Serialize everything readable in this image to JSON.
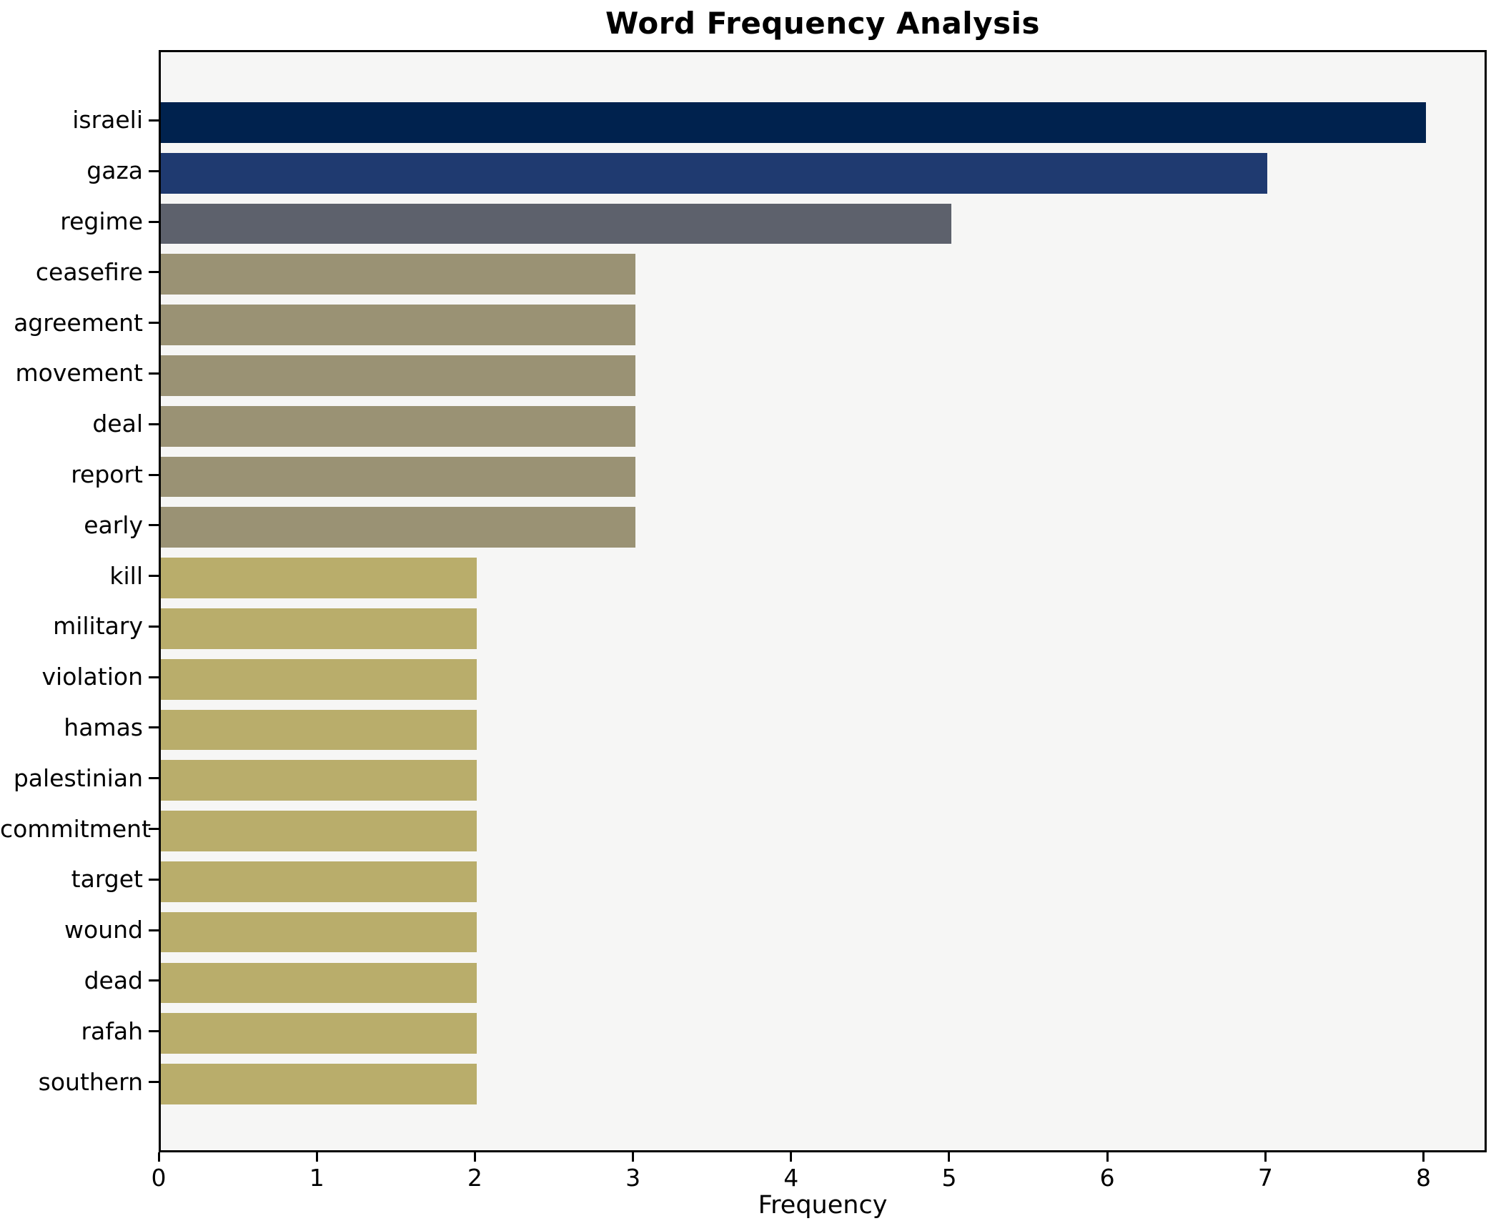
{
  "chart_data": {
    "type": "bar",
    "orientation": "horizontal",
    "title": "Word Frequency Analysis",
    "xlabel": "Frequency",
    "ylabel": "",
    "categories": [
      "israeli",
      "gaza",
      "regime",
      "ceasefire",
      "agreement",
      "movement",
      "deal",
      "report",
      "early",
      "kill",
      "military",
      "violation",
      "hamas",
      "palestinian",
      "commitment",
      "target",
      "wound",
      "dead",
      "rafah",
      "southern"
    ],
    "values": [
      8,
      7,
      5,
      3,
      3,
      3,
      3,
      3,
      3,
      2,
      2,
      2,
      2,
      2,
      2,
      2,
      2,
      2,
      2,
      2
    ],
    "bar_colors": [
      "#00224e",
      "#1f3a70",
      "#5d616c",
      "#9a9274",
      "#9a9274",
      "#9a9274",
      "#9a9274",
      "#9a9274",
      "#9a9274",
      "#b9ad6b",
      "#b9ad6b",
      "#b9ad6b",
      "#b9ad6b",
      "#b9ad6b",
      "#b9ad6b",
      "#b9ad6b",
      "#b9ad6b",
      "#b9ad6b",
      "#b9ad6b",
      "#b9ad6b"
    ],
    "x_ticks": [
      0,
      1,
      2,
      3,
      4,
      5,
      6,
      7,
      8
    ],
    "xlim": [
      0,
      8.4
    ],
    "grid": false,
    "legend": null,
    "colors": {
      "figure_background": "#ffffff",
      "plot_background": "#f6f6f5",
      "spine": "#000000",
      "text": "#000000"
    }
  }
}
